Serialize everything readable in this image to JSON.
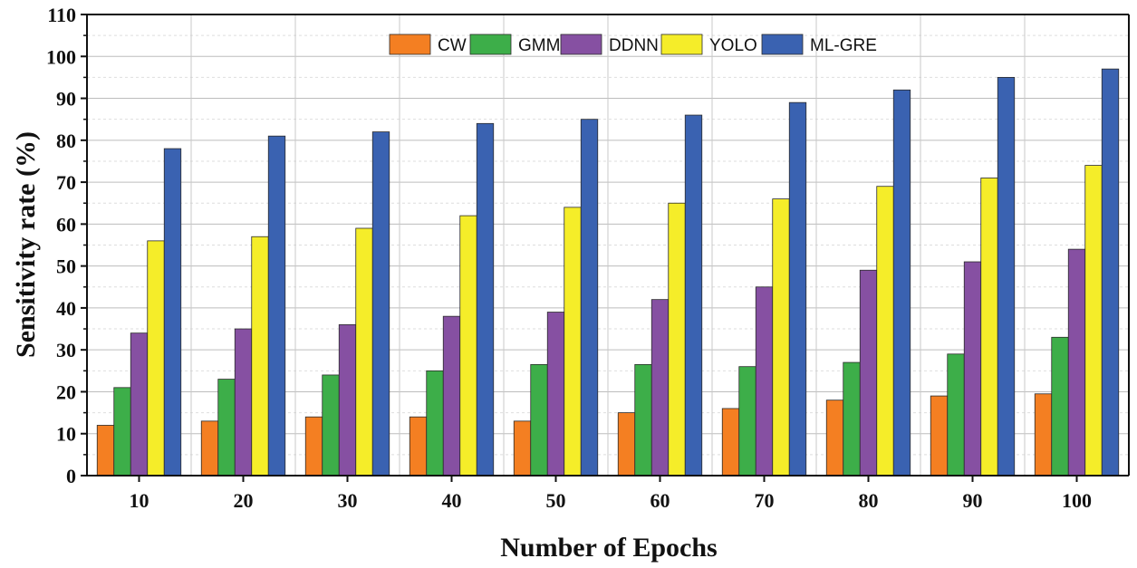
{
  "chart_data": {
    "type": "bar",
    "title": "",
    "xlabel": "Number of Epochs",
    "ylabel": "Sensitivity rate (%)",
    "ylim": [
      0,
      110
    ],
    "yticks": [
      0,
      10,
      20,
      30,
      40,
      50,
      60,
      70,
      80,
      90,
      100,
      110
    ],
    "grid": true,
    "legend_position": "top-center",
    "categories": [
      "10",
      "20",
      "30",
      "40",
      "50",
      "60",
      "70",
      "80",
      "90",
      "100"
    ],
    "series": [
      {
        "name": "CW",
        "color": "#F47F22",
        "values": [
          12,
          13,
          14,
          14,
          13,
          15,
          16,
          18,
          19,
          19.5
        ]
      },
      {
        "name": "GMM",
        "color": "#3DAE49",
        "values": [
          21,
          23,
          24,
          25,
          26.5,
          26.5,
          26,
          27,
          29,
          33
        ]
      },
      {
        "name": "DDNN",
        "color": "#8650A2",
        "values": [
          34,
          35,
          36,
          38,
          39,
          42,
          45,
          49,
          51,
          54
        ]
      },
      {
        "name": "YOLO",
        "color": "#F5ED29",
        "values": [
          56,
          57,
          59,
          62,
          64,
          65,
          66,
          69,
          71,
          74
        ]
      },
      {
        "name": "ML-GRE",
        "color": "#3A62B1",
        "values": [
          78,
          81,
          82,
          84,
          85,
          86,
          89,
          92,
          95,
          97
        ]
      }
    ]
  }
}
